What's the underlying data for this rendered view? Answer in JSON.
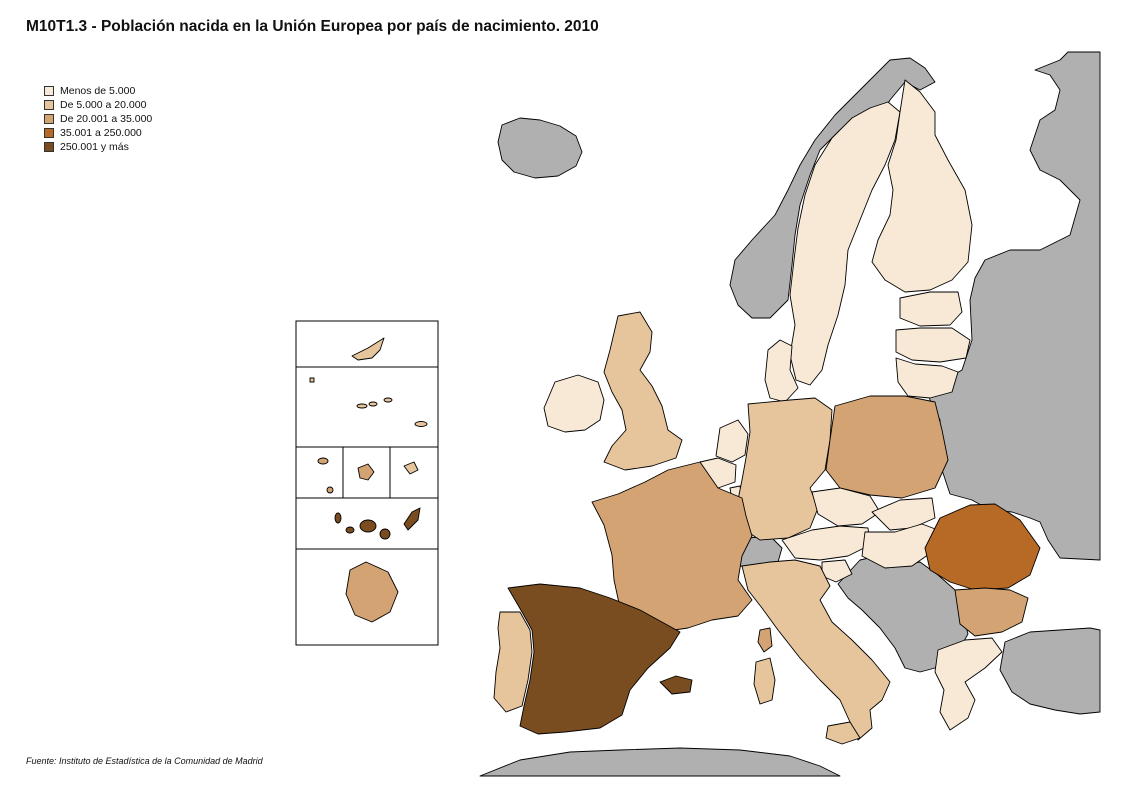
{
  "title": "M10T1.3 - Población nacida en la Unión Europea por país de nacimiento. 2010",
  "legend": {
    "items": [
      {
        "label": "Menos de 5.000",
        "color": "#f8e9d6"
      },
      {
        "label": "De 5.000 a 20.000",
        "color": "#e7c59c"
      },
      {
        "label": "De 20.001 a 35.000",
        "color": "#d4a373"
      },
      {
        "label": "35.001 a 250.000",
        "color": "#b66a26"
      },
      {
        "label": "250.001 y más",
        "color": "#7a4d20"
      }
    ]
  },
  "colors": {
    "non_eu": "#b0b0b0",
    "class1": "#f8e9d6",
    "class2": "#e7c59c",
    "class3": "#d4a373",
    "class4": "#b66a26",
    "class5": "#7a4d20"
  },
  "source": "Fuente: Instituto de Estadística de la Comunidad de Madrid"
}
